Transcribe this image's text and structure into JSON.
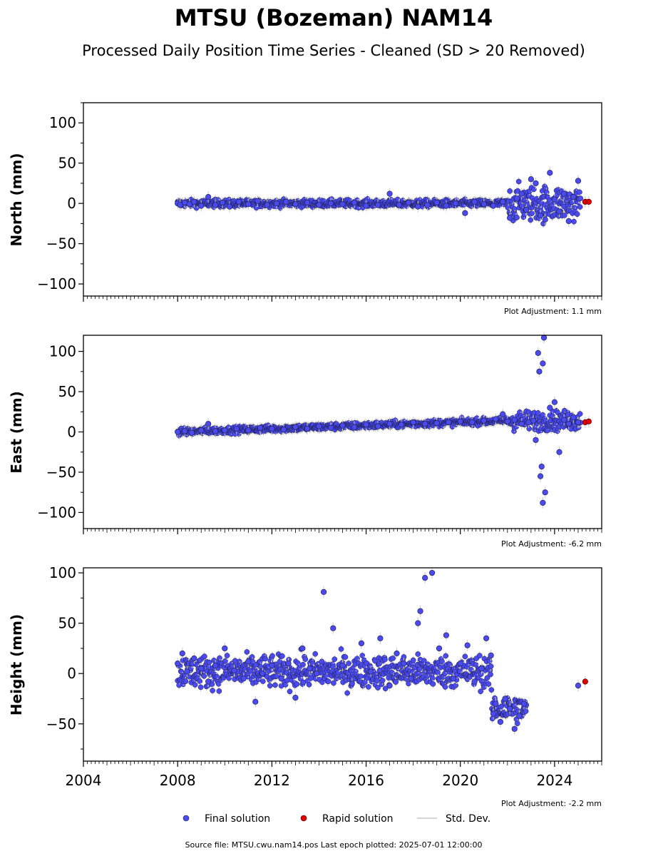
{
  "figure": {
    "title": "MTSU (Bozeman) NAM14",
    "subtitle": "Processed Daily Position Time Series - Cleaned (SD > 20 Removed)",
    "source_note": "Source file: MTSU.cwu.nam14.pos  Last epoch plotted: 2025-07-01 12:00:00"
  },
  "legend": {
    "final": "Final solution",
    "rapid": "Rapid solution",
    "stddev": "Std. Dev."
  },
  "colors": {
    "final": "#4a4af0",
    "final_edge": "#1a1a40",
    "rapid": "#e00000",
    "stddev": "#c8c8c8"
  },
  "chart_data": [
    {
      "type": "scatter",
      "ylabel": "North (mm)",
      "plot_adjustment": "Plot Adjustment: 1.1 mm",
      "xlim": [
        2004,
        2026
      ],
      "ylim": [
        -115,
        125
      ],
      "yticks": [
        100,
        50,
        0,
        -50,
        -100
      ],
      "yticklabels": [
        "100",
        "50",
        "0",
        "−50",
        "−100"
      ],
      "xticks": [
        2004,
        2008,
        2012,
        2016,
        2020,
        2024
      ],
      "xticklabels": [],
      "series": [
        {
          "name": "Final solution",
          "x": [
            2008.0,
            2008.1,
            2008.3,
            2008.5,
            2008.7,
            2009.0,
            2009.3,
            2009.6,
            2009.9,
            2010.2,
            2010.6,
            2011.0,
            2011.4,
            2011.8,
            2012.2,
            2012.6,
            2013.0,
            2013.5,
            2014.0,
            2014.5,
            2015.0,
            2015.5,
            2016.0,
            2016.5,
            2017.0,
            2017.4,
            2017.8,
            2018.2,
            2018.6,
            2019.0,
            2019.4,
            2019.8,
            2020.2,
            2020.6,
            2021.0,
            2021.4,
            2021.8,
            2022.1,
            2022.4,
            2022.6,
            2022.8,
            2023.0,
            2023.2,
            2023.4,
            2023.6,
            2023.8,
            2024.0,
            2024.2,
            2024.4,
            2024.6,
            2024.8,
            2025.0
          ],
          "y": [
            0,
            -2,
            1,
            -1,
            2,
            -3,
            8,
            -2,
            1,
            -4,
            2,
            -1,
            3,
            -2,
            0,
            2,
            -1,
            1,
            -2,
            0,
            -1,
            1,
            -3,
            -2,
            12,
            -2,
            1,
            -4,
            -2,
            1,
            -3,
            0,
            -12,
            2,
            -1,
            -3,
            2,
            -18,
            6,
            12,
            -8,
            30,
            25,
            -15,
            -20,
            38,
            5,
            -10,
            12,
            -22,
            8,
            28
          ]
        },
        {
          "name": "Rapid solution",
          "x": [
            2025.3,
            2025.45
          ],
          "y": [
            2,
            2
          ]
        }
      ]
    },
    {
      "type": "scatter",
      "ylabel": "East (mm)",
      "plot_adjustment": "Plot Adjustment: -6.2 mm",
      "xlim": [
        2004,
        2026
      ],
      "ylim": [
        -120,
        120
      ],
      "yticks": [
        100,
        50,
        0,
        -50,
        -100
      ],
      "yticklabels": [
        "100",
        "50",
        "0",
        "−50",
        "−100"
      ],
      "xticks": [
        2004,
        2008,
        2012,
        2016,
        2020,
        2024
      ],
      "xticklabels": [],
      "series": [
        {
          "name": "Final solution",
          "x": [
            2008.0,
            2008.3,
            2008.6,
            2009.0,
            2009.3,
            2009.6,
            2010.0,
            2010.5,
            2011.0,
            2011.5,
            2012.0,
            2012.5,
            2013.0,
            2013.5,
            2014.0,
            2014.5,
            2015.0,
            2015.5,
            2016.0,
            2016.5,
            2017.0,
            2017.5,
            2018.0,
            2018.5,
            2019.0,
            2019.5,
            2020.0,
            2020.5,
            2021.0,
            2021.5,
            2021.8,
            2022.0,
            2022.3,
            2022.6,
            2022.9,
            2023.1,
            2023.2,
            2023.3,
            2023.35,
            2023.4,
            2023.45,
            2023.5,
            2023.5,
            2023.55,
            2023.6,
            2023.8,
            2024.0,
            2024.2,
            2024.4,
            2024.6,
            2024.8,
            2025.0
          ],
          "y": [
            0,
            1,
            -1,
            2,
            10,
            1,
            2,
            4,
            2,
            5,
            4,
            3,
            6,
            4,
            7,
            5,
            8,
            6,
            9,
            7,
            10,
            9,
            12,
            10,
            11,
            12,
            13,
            12,
            14,
            16,
            22,
            13,
            15,
            10,
            12,
            14,
            -10,
            98,
            75,
            -55,
            -43,
            85,
            -88,
            117,
            -75,
            30,
            37,
            -25,
            15,
            10,
            18,
            12
          ]
        },
        {
          "name": "Rapid solution",
          "x": [
            2025.3,
            2025.45
          ],
          "y": [
            12,
            13
          ]
        }
      ]
    },
    {
      "type": "scatter",
      "ylabel": "Height (mm)",
      "plot_adjustment": "Plot Adjustment: -2.2 mm",
      "xlim": [
        2004,
        2026
      ],
      "ylim": [
        -87,
        105
      ],
      "yticks": [
        100,
        50,
        0,
        -50
      ],
      "yticklabels": [
        "100",
        "50",
        "0",
        "−50"
      ],
      "xticks": [
        2004,
        2008,
        2012,
        2016,
        2020,
        2024
      ],
      "xticklabels": [
        "2004",
        "2008",
        "2012",
        "2016",
        "2020",
        "2024"
      ],
      "series": [
        {
          "name": "Final solution",
          "x": [
            2008.0,
            2008.2,
            2008.4,
            2008.7,
            2009.0,
            2009.3,
            2009.6,
            2010.0,
            2010.4,
            2010.8,
            2011.0,
            2011.3,
            2011.6,
            2012.0,
            2012.4,
            2012.7,
            2013.0,
            2013.3,
            2013.6,
            2013.9,
            2014.2,
            2014.6,
            2015.0,
            2015.4,
            2015.8,
            2016.2,
            2016.6,
            2017.0,
            2017.3,
            2017.6,
            2017.9,
            2018.2,
            2018.3,
            2018.5,
            2018.8,
            2019.1,
            2019.4,
            2019.7,
            2020.0,
            2020.3,
            2020.6,
            2020.9,
            2021.1,
            2021.3,
            2021.4,
            2021.5,
            2021.7,
            2021.9,
            2022.1,
            2022.3,
            2022.5,
            2022.7,
            2025.0
          ],
          "y": [
            10,
            20,
            2,
            15,
            5,
            -8,
            8,
            25,
            3,
            -5,
            12,
            -28,
            0,
            8,
            -5,
            10,
            -24,
            25,
            5,
            0,
            81,
            45,
            8,
            -10,
            30,
            2,
            35,
            -12,
            20,
            10,
            -5,
            50,
            62,
            95,
            100,
            25,
            38,
            -5,
            10,
            28,
            -8,
            5,
            35,
            18,
            -40,
            -30,
            -48,
            -25,
            -35,
            -55,
            -42,
            -30,
            -12
          ]
        },
        {
          "name": "Rapid solution",
          "x": [
            2025.3
          ],
          "y": [
            -8
          ]
        }
      ]
    }
  ]
}
